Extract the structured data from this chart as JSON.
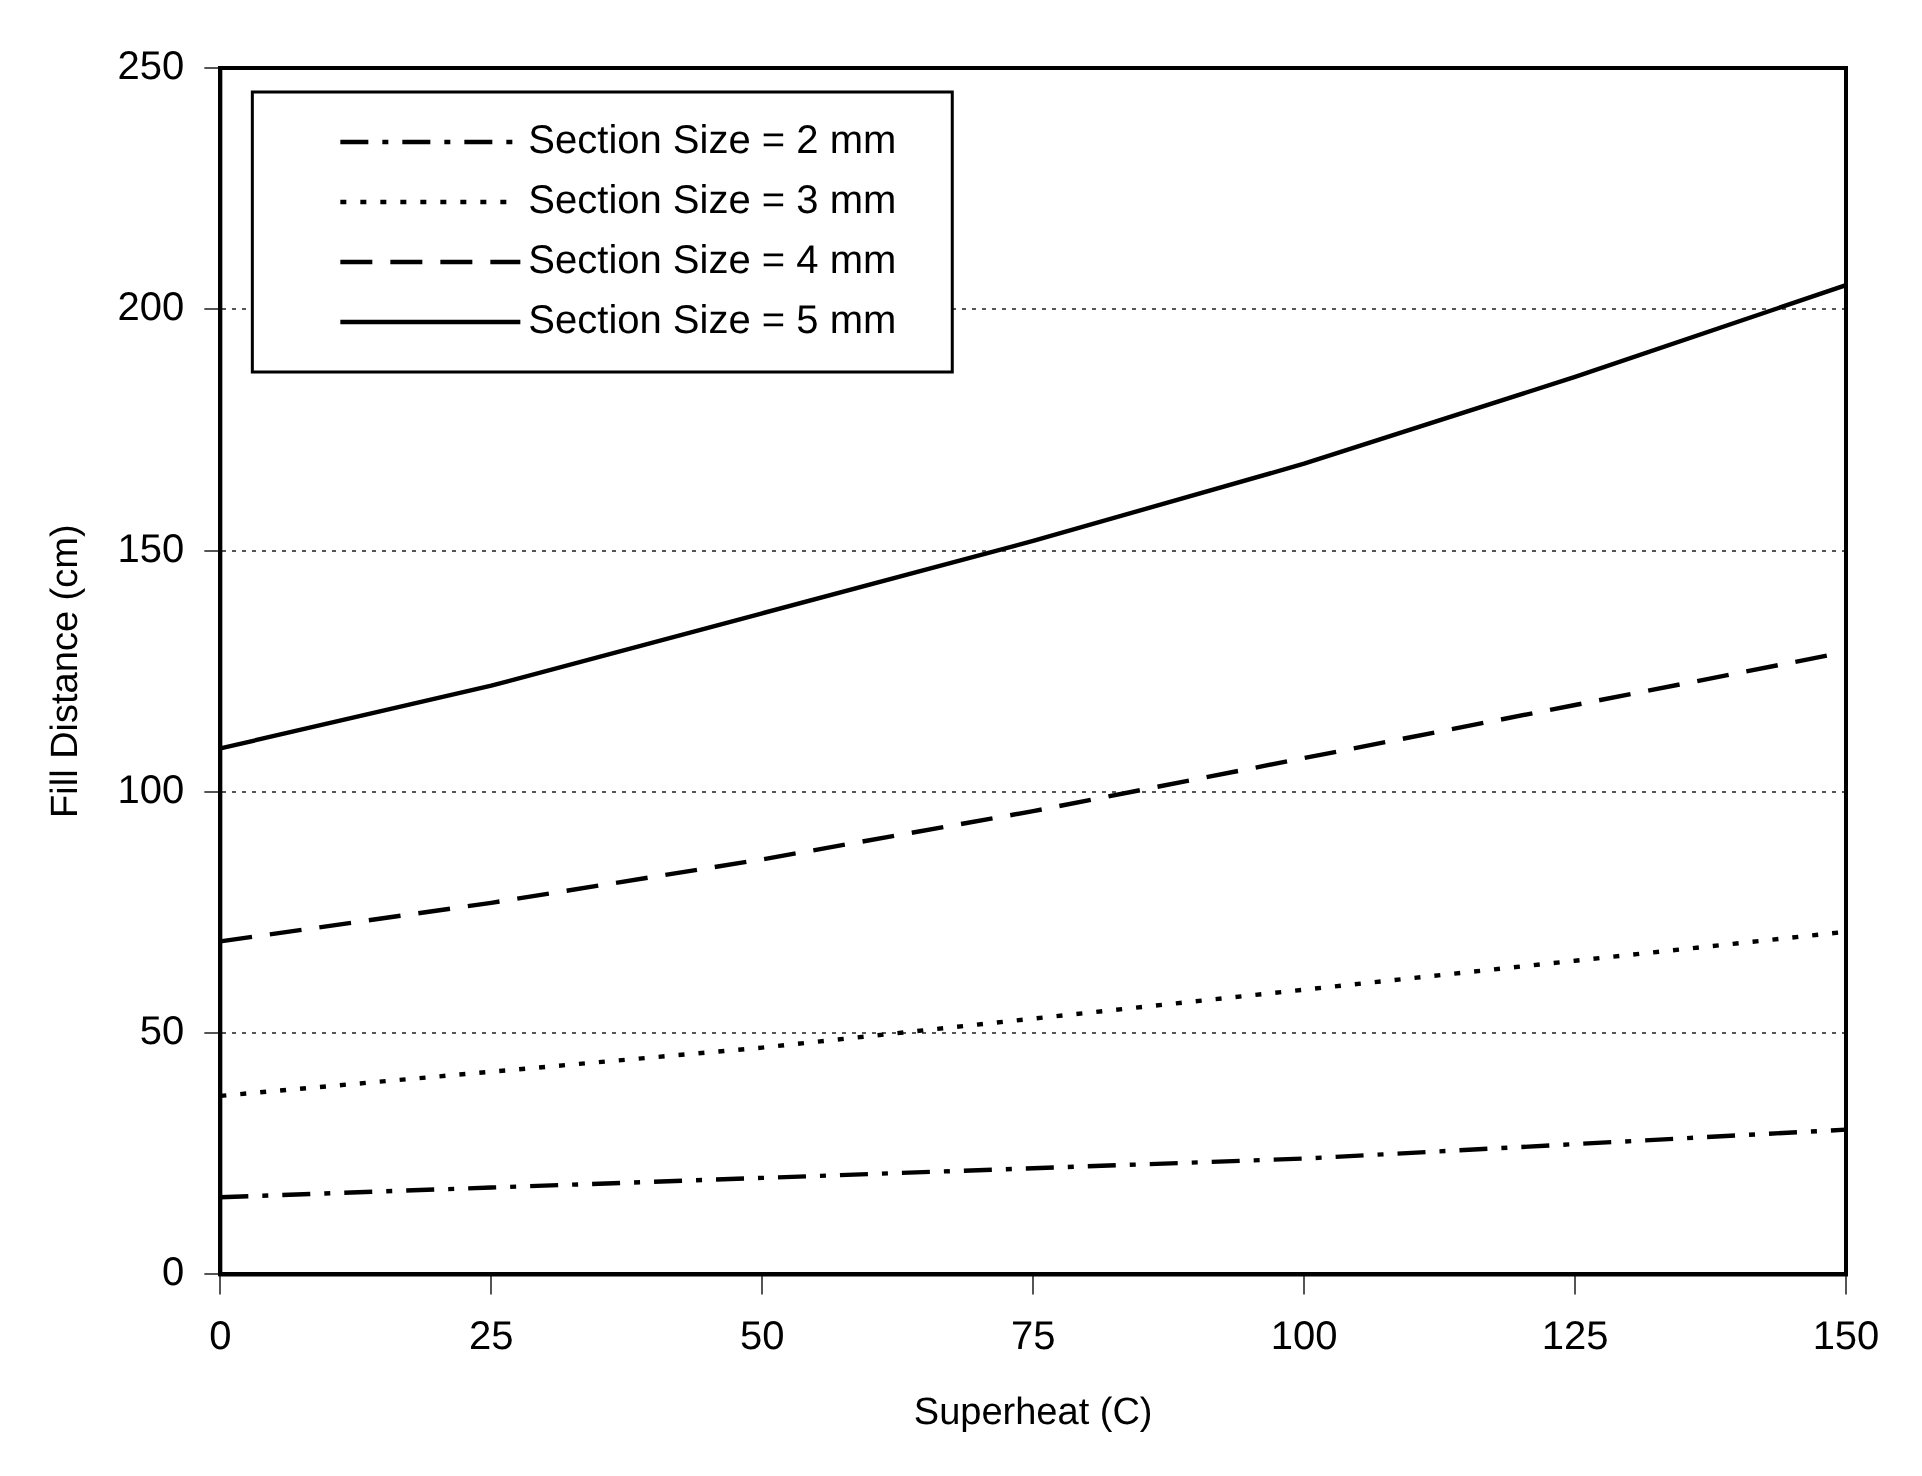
{
  "chart_data": {
    "type": "line",
    "xlabel": "Superheat (C)",
    "ylabel": "Fill Distance (cm)",
    "x": [
      0,
      25,
      50,
      75,
      100,
      125,
      150
    ],
    "series": [
      {
        "name": "Section Size = 2 mm",
        "color": "#000000",
        "line_style": "dashdot",
        "values": [
          16,
          18,
          20,
          22,
          24,
          27,
          30
        ]
      },
      {
        "name": "Section Size = 3 mm",
        "color": "#000000",
        "line_style": "dotted",
        "values": [
          37,
          42,
          47,
          53,
          59,
          65,
          71
        ]
      },
      {
        "name": "Section Size = 4 mm",
        "color": "#000000",
        "line_style": "dashed",
        "values": [
          69,
          77,
          86,
          96,
          107,
          118,
          129
        ]
      },
      {
        "name": "Section Size = 5 mm",
        "color": "#000000",
        "line_style": "solid",
        "values": [
          109,
          122,
          137,
          152,
          168,
          186,
          205
        ]
      }
    ],
    "xlim": [
      0,
      150
    ],
    "xticks": [
      0,
      25,
      50,
      75,
      100,
      125,
      150
    ],
    "ylim": [
      0,
      250
    ],
    "yticks": [
      0,
      50,
      100,
      150,
      200,
      250
    ],
    "grid": "y",
    "legend": "top left",
    "marker": "none"
  }
}
